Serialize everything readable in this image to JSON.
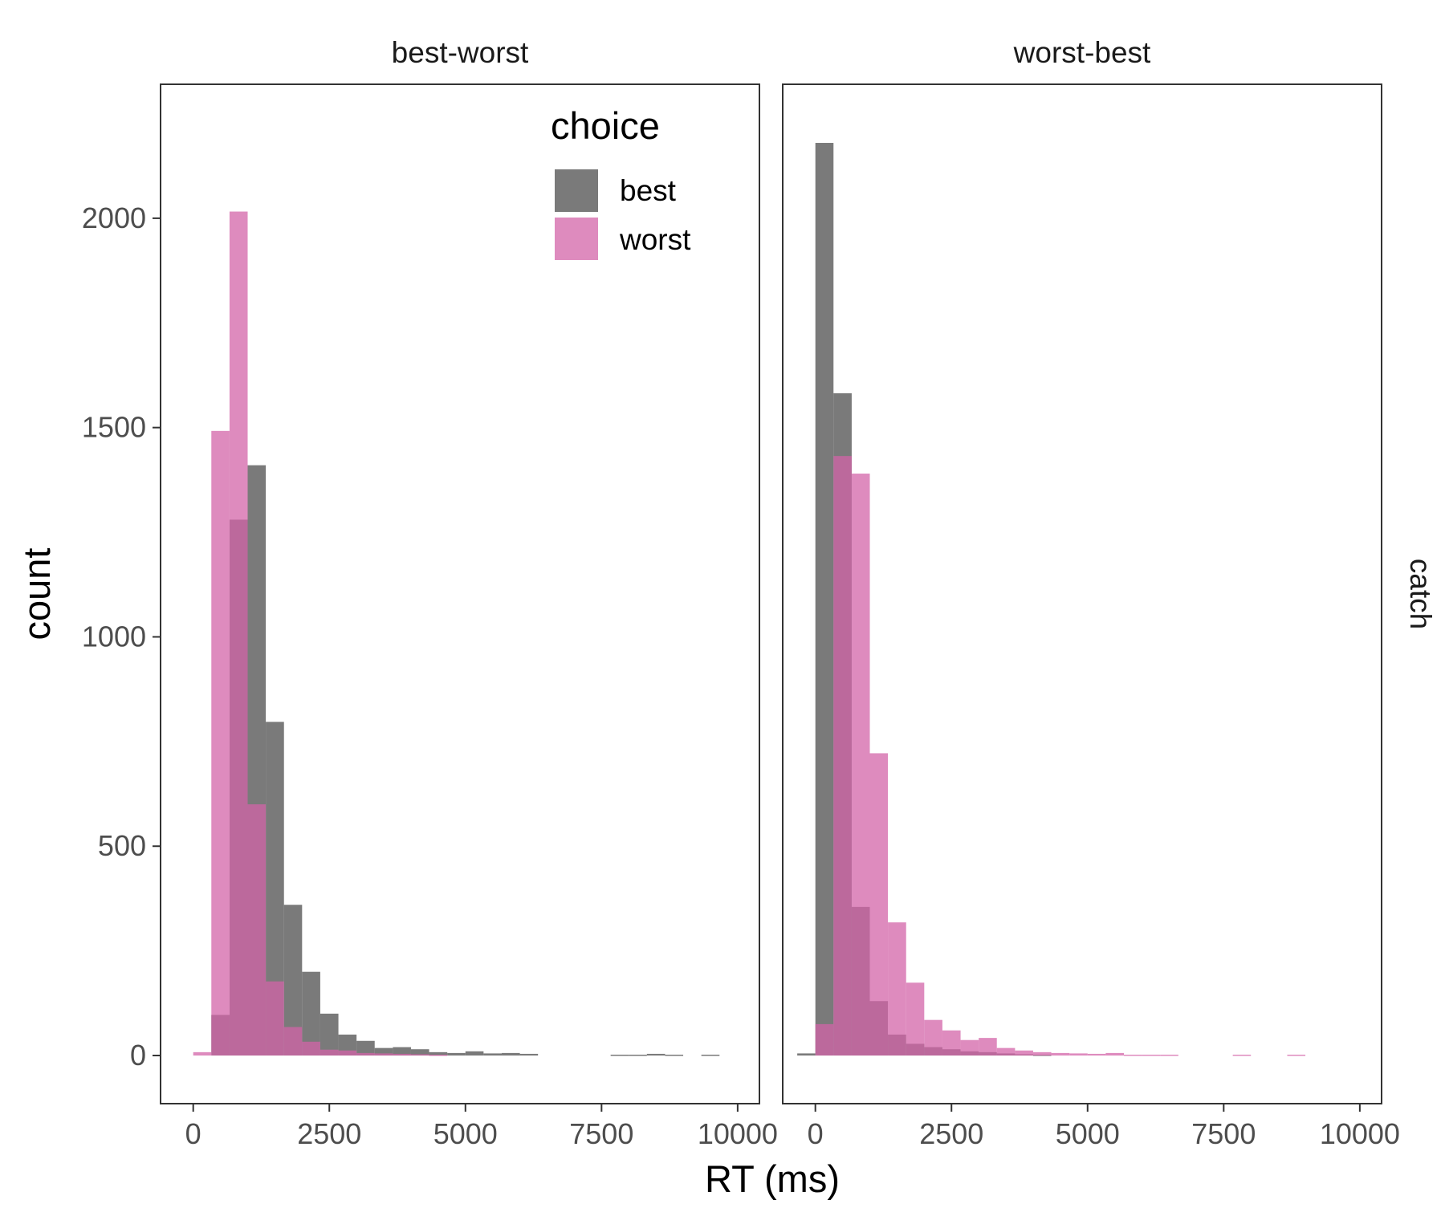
{
  "chart_data": {
    "type": "bar",
    "subtype": "histogram-overlaid",
    "xlabel": "RT (ms)",
    "ylabel": "count",
    "xlim": [
      -600,
      10400
    ],
    "ylim": [
      -115,
      2320
    ],
    "x_ticks": [
      0,
      2500,
      5000,
      7500,
      10000
    ],
    "y_ticks": [
      0,
      500,
      1000,
      1500,
      2000
    ],
    "grid": false,
    "bin_width": 333,
    "row_strip_label": "catch",
    "legend": {
      "title": "choice",
      "position": "top-right",
      "entries": [
        {
          "name": "best",
          "color": "#4d4d4d"
        },
        {
          "name": "worst",
          "color": "#d364a8"
        }
      ]
    },
    "colors": {
      "best": "#4d4d4d",
      "worst": "#d364a8",
      "overlap": "#b05a8c",
      "panel_border": "#333333",
      "tick_text": "#4d4d4d"
    },
    "panels": [
      {
        "title": "best-worst",
        "series": [
          {
            "name": "best",
            "bins": [
              {
                "x0": 333,
                "x1": 667,
                "y": 97
              },
              {
                "x0": 667,
                "x1": 1000,
                "y": 1280
              },
              {
                "x0": 1000,
                "x1": 1333,
                "y": 1410
              },
              {
                "x0": 1333,
                "x1": 1667,
                "y": 797
              },
              {
                "x0": 1667,
                "x1": 2000,
                "y": 360
              },
              {
                "x0": 2000,
                "x1": 2333,
                "y": 200
              },
              {
                "x0": 2333,
                "x1": 2667,
                "y": 100
              },
              {
                "x0": 2667,
                "x1": 3000,
                "y": 50
              },
              {
                "x0": 3000,
                "x1": 3333,
                "y": 35
              },
              {
                "x0": 3333,
                "x1": 3667,
                "y": 18
              },
              {
                "x0": 3667,
                "x1": 4000,
                "y": 20
              },
              {
                "x0": 4000,
                "x1": 4333,
                "y": 15
              },
              {
                "x0": 4333,
                "x1": 4667,
                "y": 8
              },
              {
                "x0": 4667,
                "x1": 5000,
                "y": 6
              },
              {
                "x0": 5000,
                "x1": 5333,
                "y": 10
              },
              {
                "x0": 5333,
                "x1": 5667,
                "y": 5
              },
              {
                "x0": 5667,
                "x1": 6000,
                "y": 6
              },
              {
                "x0": 6000,
                "x1": 6333,
                "y": 4
              },
              {
                "x0": 7667,
                "x1": 8000,
                "y": 2
              },
              {
                "x0": 8000,
                "x1": 8333,
                "y": 2
              },
              {
                "x0": 8333,
                "x1": 8667,
                "y": 4
              },
              {
                "x0": 8667,
                "x1": 9000,
                "y": 2
              },
              {
                "x0": 9333,
                "x1": 9667,
                "y": 2
              }
            ]
          },
          {
            "name": "worst",
            "bins": [
              {
                "x0": 0,
                "x1": 333,
                "y": 8
              },
              {
                "x0": 333,
                "x1": 667,
                "y": 1492
              },
              {
                "x0": 667,
                "x1": 1000,
                "y": 2016
              },
              {
                "x0": 1000,
                "x1": 1333,
                "y": 600
              },
              {
                "x0": 1333,
                "x1": 1667,
                "y": 177
              },
              {
                "x0": 1667,
                "x1": 2000,
                "y": 68
              },
              {
                "x0": 2000,
                "x1": 2333,
                "y": 33
              },
              {
                "x0": 2333,
                "x1": 2667,
                "y": 14
              },
              {
                "x0": 2667,
                "x1": 3000,
                "y": 12
              },
              {
                "x0": 3000,
                "x1": 3333,
                "y": 6
              },
              {
                "x0": 3333,
                "x1": 3667,
                "y": 5
              },
              {
                "x0": 3667,
                "x1": 4000,
                "y": 4
              },
              {
                "x0": 4000,
                "x1": 4333,
                "y": 3
              },
              {
                "x0": 4333,
                "x1": 4667,
                "y": 2
              }
            ]
          }
        ]
      },
      {
        "title": "worst-best",
        "series": [
          {
            "name": "best",
            "bins": [
              {
                "x0": -333,
                "x1": 0,
                "y": 5
              },
              {
                "x0": 0,
                "x1": 333,
                "y": 2180
              },
              {
                "x0": 333,
                "x1": 667,
                "y": 1582
              },
              {
                "x0": 667,
                "x1": 1000,
                "y": 355
              },
              {
                "x0": 1000,
                "x1": 1333,
                "y": 130
              },
              {
                "x0": 1333,
                "x1": 1667,
                "y": 50
              },
              {
                "x0": 1667,
                "x1": 2000,
                "y": 28
              },
              {
                "x0": 2000,
                "x1": 2333,
                "y": 20
              },
              {
                "x0": 2333,
                "x1": 2667,
                "y": 15
              },
              {
                "x0": 2667,
                "x1": 3000,
                "y": 10
              },
              {
                "x0": 3000,
                "x1": 3333,
                "y": 8
              },
              {
                "x0": 3333,
                "x1": 3667,
                "y": 5
              },
              {
                "x0": 3667,
                "x1": 4000,
                "y": 3
              },
              {
                "x0": 4000,
                "x1": 4333,
                "y": 2
              }
            ]
          },
          {
            "name": "worst",
            "bins": [
              {
                "x0": 0,
                "x1": 333,
                "y": 75
              },
              {
                "x0": 333,
                "x1": 667,
                "y": 1432
              },
              {
                "x0": 667,
                "x1": 1000,
                "y": 1390
              },
              {
                "x0": 1000,
                "x1": 1333,
                "y": 722
              },
              {
                "x0": 1333,
                "x1": 1667,
                "y": 318
              },
              {
                "x0": 1667,
                "x1": 2000,
                "y": 174
              },
              {
                "x0": 2000,
                "x1": 2333,
                "y": 85
              },
              {
                "x0": 2333,
                "x1": 2667,
                "y": 60
              },
              {
                "x0": 2667,
                "x1": 3000,
                "y": 37
              },
              {
                "x0": 3000,
                "x1": 3333,
                "y": 42
              },
              {
                "x0": 3333,
                "x1": 3667,
                "y": 18
              },
              {
                "x0": 3667,
                "x1": 4000,
                "y": 12
              },
              {
                "x0": 4000,
                "x1": 4333,
                "y": 8
              },
              {
                "x0": 4333,
                "x1": 4667,
                "y": 6
              },
              {
                "x0": 4667,
                "x1": 5000,
                "y": 5
              },
              {
                "x0": 5000,
                "x1": 5333,
                "y": 4
              },
              {
                "x0": 5333,
                "x1": 5667,
                "y": 6
              },
              {
                "x0": 5667,
                "x1": 6000,
                "y": 2
              },
              {
                "x0": 6000,
                "x1": 6333,
                "y": 2
              },
              {
                "x0": 6333,
                "x1": 6667,
                "y": 2
              },
              {
                "x0": 7667,
                "x1": 8000,
                "y": 2
              },
              {
                "x0": 8667,
                "x1": 9000,
                "y": 2
              }
            ]
          }
        ]
      }
    ]
  }
}
